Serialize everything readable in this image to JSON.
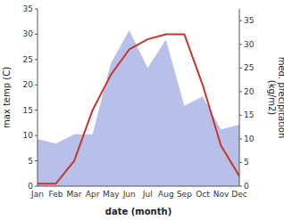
{
  "chart_data": {
    "type": "line",
    "x_label": "date (month)",
    "y_label": "max temp (C)",
    "y2_label": "med. precipitation\n(kg/m2)",
    "categories": [
      "Jan",
      "Feb",
      "Mar",
      "Apr",
      "May",
      "Jun",
      "Jul",
      "Aug",
      "Sep",
      "Oct",
      "Nov",
      "Dec"
    ],
    "series": [
      {
        "type": "area",
        "axis": "y2",
        "color": "#b8bfe8",
        "values": [
          10,
          9,
          11,
          11,
          26,
          33,
          25,
          31,
          17,
          19,
          12,
          13
        ]
      },
      {
        "type": "line",
        "color": "#c0392b",
        "values": [
          0.5,
          0.5,
          5,
          15,
          22,
          27,
          29,
          30,
          30,
          20,
          8,
          2
        ]
      }
    ],
    "ylim": [
      0,
      35
    ],
    "yticks": [
      0,
      5,
      10,
      15,
      20,
      25,
      30,
      35
    ],
    "y2lim": [
      0,
      37.5
    ],
    "y2ticks": [
      0,
      5,
      10,
      15,
      20,
      25,
      30,
      35
    ],
    "grid": false
  }
}
